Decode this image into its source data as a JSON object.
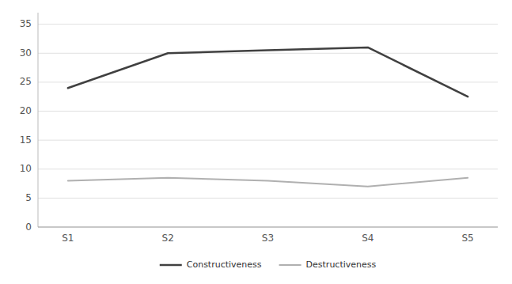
{
  "chart_data": {
    "type": "line",
    "categories": [
      "S1",
      "S2",
      "S3",
      "S4",
      "S5"
    ],
    "series": [
      {
        "name": "Constructiveness",
        "color": "#404040",
        "values": [
          24,
          30,
          30.5,
          31,
          22.5
        ]
      },
      {
        "name": "Destructiveness",
        "color": "#b0b0b0",
        "values": [
          8,
          8.5,
          8,
          7,
          8.5
        ]
      }
    ],
    "ylim": [
      0,
      37
    ],
    "yticks": [
      0,
      5,
      10,
      15,
      20,
      25,
      30,
      35
    ],
    "grid": true,
    "legend": "bottom"
  }
}
